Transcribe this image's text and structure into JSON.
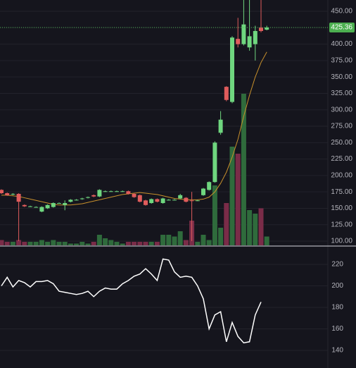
{
  "chart_data": [
    {
      "type": "candlestick",
      "open": [
        178,
        173,
        171,
        172,
        155,
        153,
        152,
        145,
        150,
        152,
        158,
        155,
        160,
        163,
        164,
        166,
        170,
        168,
        176,
        176,
        176,
        176,
        176,
        172,
        170,
        162,
        158,
        164,
        158,
        163,
        163,
        165,
        166,
        162,
        162,
        170,
        178,
        190,
        265,
        335,
        312,
        408,
        400,
        395,
        400,
        425,
        422
      ],
      "high": [
        179,
        174,
        173,
        173,
        156,
        154,
        153,
        153,
        156,
        159,
        159,
        162,
        164,
        164,
        166,
        168,
        171,
        179,
        177,
        177,
        177,
        177,
        177,
        173,
        171,
        163,
        165,
        165,
        166,
        164,
        164,
        172,
        167,
        175,
        163,
        181,
        191,
        252,
        298,
        336,
        412,
        440,
        470,
        475,
        428,
        470,
        428
      ],
      "low": [
        172,
        169,
        170,
        100,
        152,
        152,
        151,
        144,
        149,
        151,
        157,
        147,
        159,
        162,
        163,
        165,
        167,
        167,
        175,
        175,
        175,
        175,
        171,
        166,
        159,
        154,
        157,
        159,
        157,
        162,
        162,
        164,
        159,
        100,
        161,
        169,
        177,
        189,
        262,
        313,
        310,
        395,
        398,
        390,
        375,
        418,
        421
      ],
      "close": [
        173,
        170,
        172,
        160,
        153,
        153,
        152,
        152,
        155,
        158,
        158,
        158,
        163,
        163,
        165,
        167,
        168,
        178,
        176,
        176,
        176,
        176,
        172,
        167,
        160,
        155,
        164,
        160,
        165,
        163,
        163,
        170,
        160,
        161,
        162,
        180,
        190,
        250,
        285,
        315,
        410,
        400,
        430,
        412,
        420,
        420,
        425.36
      ],
      "up_color": "#6fd67f",
      "down_color": "#e05c5c",
      "volume": [
        3,
        2,
        2,
        3,
        2,
        2,
        2,
        3,
        2,
        3,
        2,
        2,
        1,
        1,
        2,
        1,
        2,
        6,
        4,
        3,
        2,
        1,
        2,
        2,
        2,
        2,
        2,
        2,
        6,
        6,
        5,
        8,
        3,
        14,
        2,
        6,
        3,
        34,
        10,
        24,
        56,
        52,
        86,
        20,
        18,
        21,
        5
      ],
      "volume_lim": [
        0,
        100
      ],
      "volume_up_color": "#2f6b3c",
      "volume_down_color": "#7a2c48",
      "ma": {
        "color": "#c8902c",
        "values": [
          170,
          170,
          169,
          168,
          166,
          164,
          162,
          160,
          158,
          156,
          155,
          155,
          155,
          156,
          157,
          159,
          161,
          163,
          165,
          167,
          169,
          171,
          172,
          173,
          174,
          173,
          172,
          171,
          169,
          167,
          165,
          164,
          163,
          163,
          163,
          164,
          167,
          175,
          188,
          205,
          228,
          255,
          290,
          322,
          350,
          372,
          388
        ]
      },
      "ylim": [
        93.6,
        467.2
      ],
      "yticks": [
        {
          "value": 100,
          "label": "100.00"
        },
        {
          "value": 125,
          "label": "125.00"
        },
        {
          "value": 150,
          "label": "150.00"
        },
        {
          "value": 175,
          "label": "175.00"
        },
        {
          "value": 200,
          "label": "200.00"
        },
        {
          "value": 225,
          "label": "225.00"
        },
        {
          "value": 250,
          "label": "250.00"
        },
        {
          "value": 275,
          "label": "275.00"
        },
        {
          "value": 300,
          "label": "300.00"
        },
        {
          "value": 325,
          "label": "325.00"
        },
        {
          "value": 350,
          "label": "350.00"
        },
        {
          "value": 375,
          "label": "375.00"
        },
        {
          "value": 400,
          "label": "400.00"
        },
        {
          "value": 425,
          "label": "425.00"
        },
        {
          "value": 450,
          "label": "450.00"
        }
      ],
      "grid": true,
      "last_price_color": "#4caf50"
    },
    {
      "type": "line",
      "values": [
        200,
        208,
        199,
        205,
        203,
        199,
        204,
        204,
        205,
        202,
        195,
        194,
        193,
        192,
        193,
        195,
        190,
        195,
        198,
        197,
        197,
        202,
        205,
        209,
        211,
        216,
        211,
        205,
        225,
        224,
        213,
        208,
        209,
        208,
        200,
        188,
        160,
        173,
        176,
        148,
        166,
        153,
        147,
        148,
        173,
        185,
        null
      ],
      "color": "#ffffff",
      "ylim": [
        123.6,
        236.4
      ],
      "yticks": [
        140,
        160,
        180,
        200,
        220
      ],
      "grid": true
    }
  ]
}
